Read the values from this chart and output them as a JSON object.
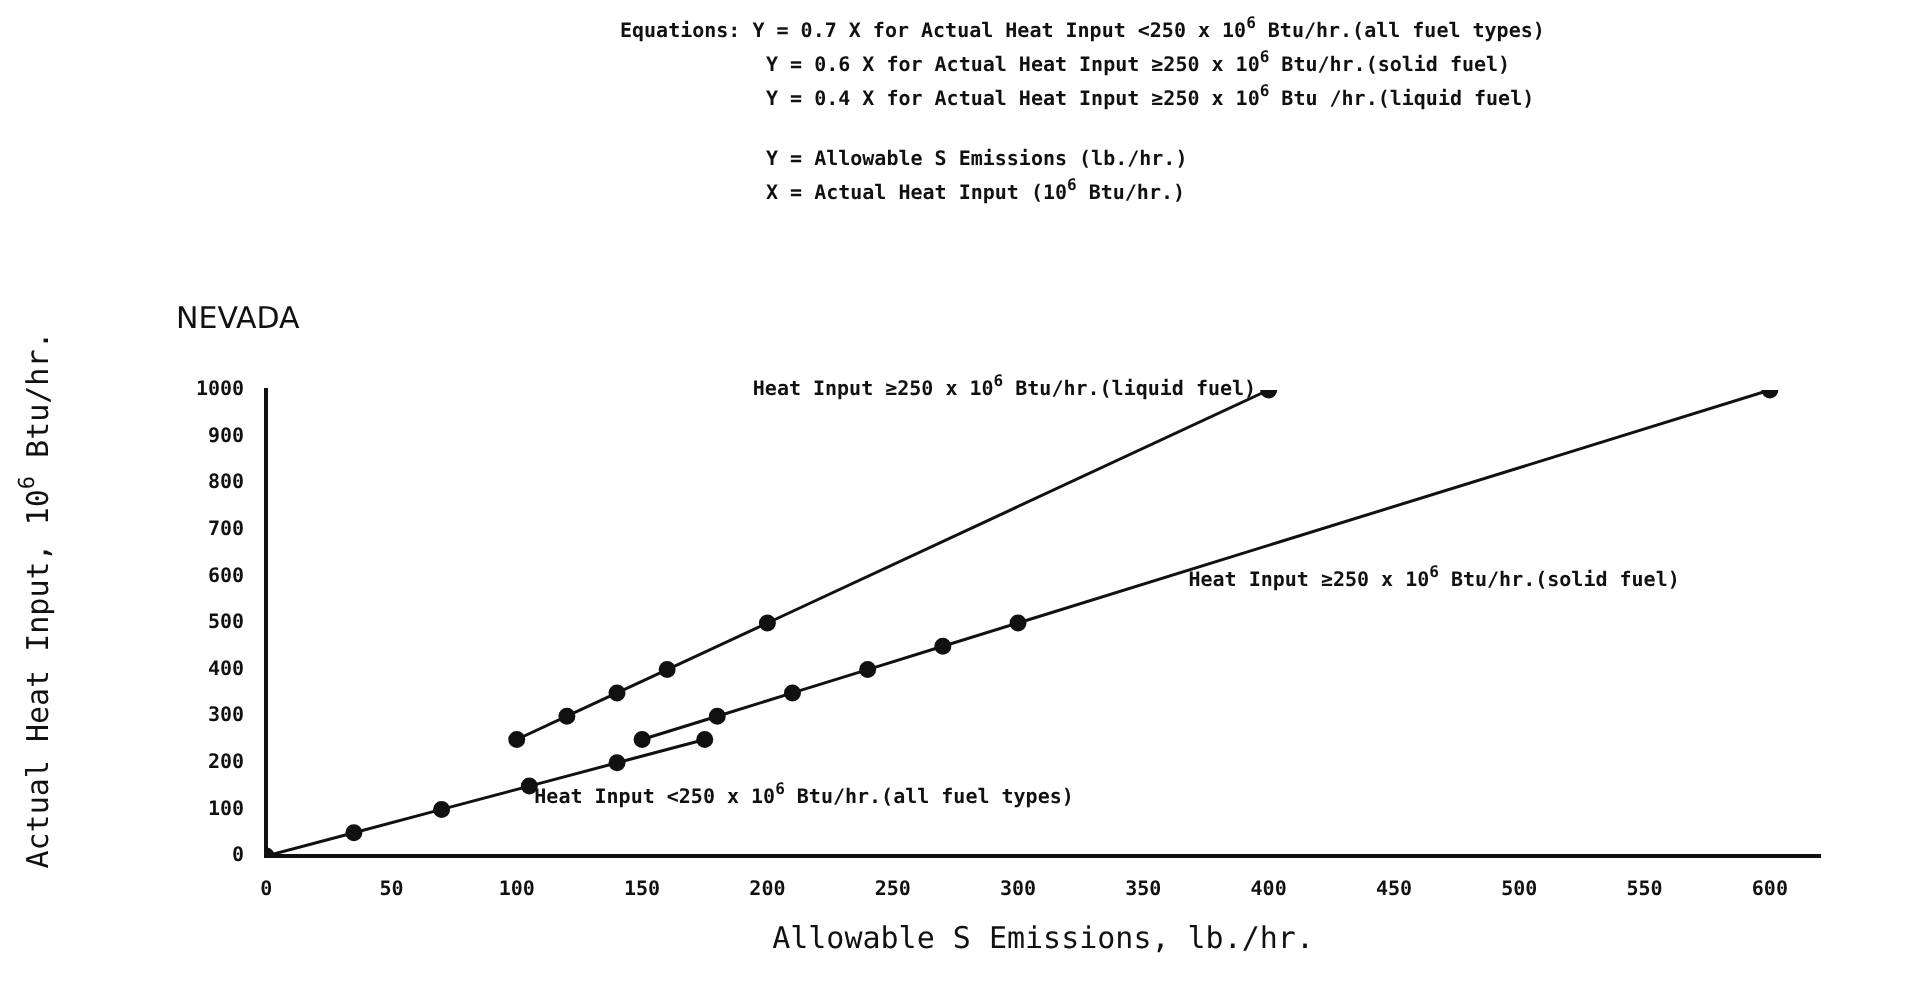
{
  "chart_data": {
    "type": "line",
    "title": "NEVADA",
    "xlabel": "Allowable S Emissions, lb./hr.",
    "ylabel": "Actual Heat Input, 10$^{6}$ Btu/hr.",
    "annotations": [
      "Equations: Y = 0.7 X for Actual Heat Input <250 x 10$^{6}$ Btu/hr.(all fuel types)",
      "Y = 0.6 X for Actual Heat Input ≥250 x 10$^{6}$ Btu/hr.(solid fuel)",
      "Y = 0.4 X for Actual Heat Input ≥250 x 10$^{6}$ Btu /hr.(liquid fuel)",
      "Y = Allowable S Emissions (lb./hr.)",
      "X = Actual Heat Input (10$^{6}$ Btu/hr.)"
    ],
    "series": [
      {
        "name": "Heat Input ≥250 x 10$^{6}$ Btu/hr.(liquid fuel)",
        "color": "#111111",
        "x": [
          100,
          120,
          140,
          160,
          200,
          400
        ],
        "values": [
          250,
          300,
          350,
          400,
          500,
          1000
        ]
      },
      {
        "name": "Heat Input ≥250 x 10$^{6}$ Btu/hr.(solid fuel)",
        "color": "#111111",
        "x": [
          150,
          180,
          210,
          240,
          270,
          300,
          600
        ],
        "values": [
          250,
          300,
          350,
          400,
          450,
          500,
          1000
        ]
      },
      {
        "name": "Heat Input <250 x 10$^{6}$ Btu/hr.(all fuel types)",
        "color": "#111111",
        "x": [
          0,
          35,
          70,
          105,
          140,
          175
        ],
        "values": [
          0,
          50,
          100,
          150,
          200,
          250
        ]
      }
    ],
    "xlim": [
      0,
      620
    ],
    "xticks": [
      0,
      50,
      100,
      150,
      200,
      250,
      300,
      350,
      400,
      450,
      500,
      550,
      600
    ],
    "ylim": [
      0,
      1000
    ],
    "yticks": [
      0,
      100,
      200,
      300,
      400,
      500,
      600,
      700,
      800,
      900,
      1000
    ],
    "grid": false,
    "legend": false,
    "marker": "circle",
    "line_style": "solid"
  }
}
